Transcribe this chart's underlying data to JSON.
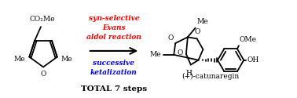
{
  "bg_color": "#ffffff",
  "text_red": "#ff0000",
  "text_blue": "#0000ff",
  "text_black": "#000000",
  "red_label_lines": [
    "syn-selective",
    "Evans",
    "aldol reaction"
  ],
  "blue_label_lines": [
    "successive",
    "ketalization"
  ],
  "bottom_label": "TOTAL 7 steps",
  "product_label": "(+)-catunaregin",
  "furan_Me_left": "Me",
  "furan_Me_right": "Me",
  "furan_O": "O",
  "furan_CO2Me": "CO₂Me",
  "cat_Me_top": "Me",
  "cat_Me_left": "Me",
  "cat_H": "H",
  "phenyl_OMe": "OMe",
  "phenyl_OH": "OH"
}
